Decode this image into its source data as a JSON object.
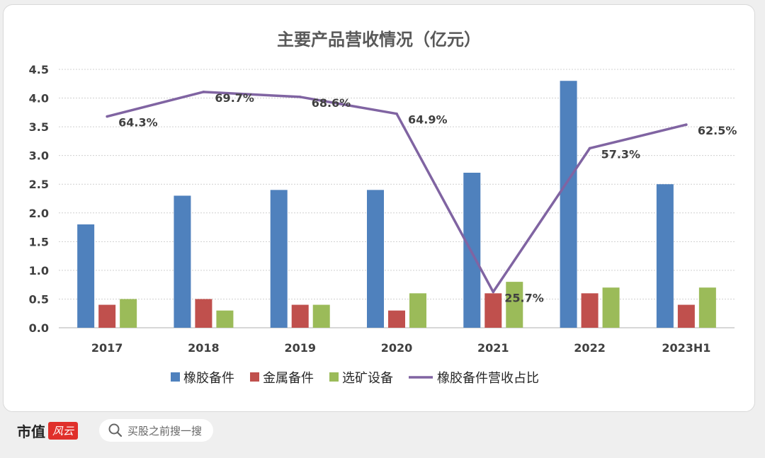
{
  "chart_data": {
    "type": "bar",
    "title": "主要产品营收情况（亿元）",
    "categories": [
      "2017",
      "2018",
      "2019",
      "2020",
      "2021",
      "2022",
      "2023H1"
    ],
    "ylim": [
      0,
      4.5
    ],
    "yticks": [
      "0.0",
      "0.5",
      "1.0",
      "1.5",
      "2.0",
      "2.5",
      "3.0",
      "3.5",
      "4.0",
      "4.5"
    ],
    "grid": true,
    "legend_position": "bottom",
    "series": [
      {
        "name": "橡胶备件",
        "kind": "bar",
        "color": "#4f81bd",
        "values": [
          1.8,
          2.3,
          2.4,
          2.4,
          2.7,
          4.3,
          2.5
        ]
      },
      {
        "name": "金属备件",
        "kind": "bar",
        "color": "#c0504d",
        "values": [
          0.4,
          0.5,
          0.4,
          0.3,
          0.6,
          0.6,
          0.4
        ]
      },
      {
        "name": "选矿设备",
        "kind": "bar",
        "color": "#9bbb59",
        "values": [
          0.5,
          0.3,
          0.4,
          0.6,
          0.8,
          0.7,
          0.7
        ]
      },
      {
        "name": "橡胶备件营收占比",
        "kind": "line",
        "color": "#8064a2",
        "values": [
          64.3,
          69.7,
          68.6,
          64.9,
          25.7,
          57.3,
          62.5
        ],
        "labels": [
          "64.3%",
          "69.7%",
          "68.6%",
          "64.9%",
          "25.7%",
          "57.3%",
          "62.5%"
        ]
      }
    ]
  },
  "footer": {
    "brand": "市值",
    "brand_logo": "风云",
    "search_placeholder": "买股之前搜一搜",
    "search_icon": "search-icon"
  }
}
